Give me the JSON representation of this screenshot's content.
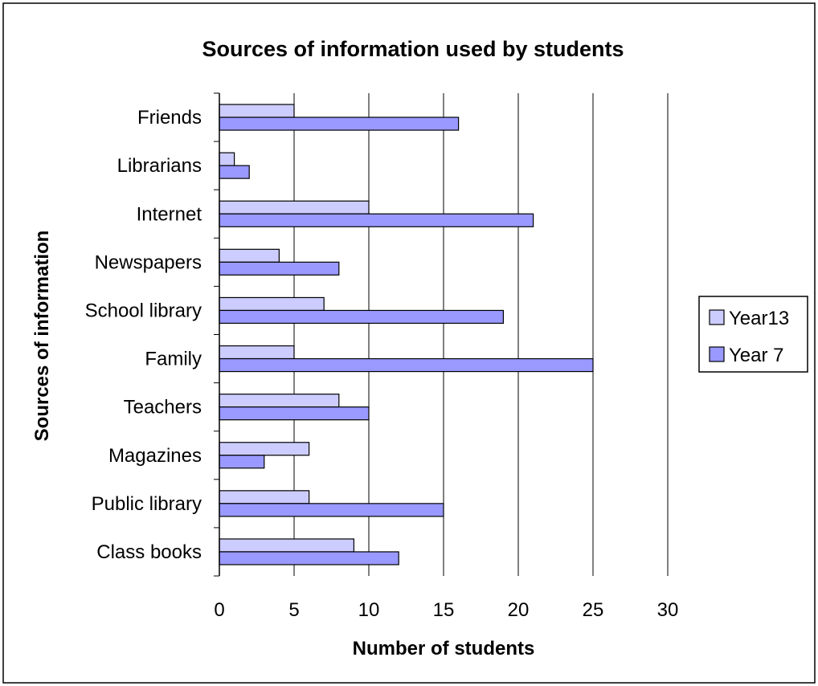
{
  "chart_data": {
    "type": "bar",
    "orientation": "horizontal",
    "title": "Sources of information used by students",
    "xlabel": "Number of students",
    "ylabel": "Sources of information",
    "xlim": [
      0,
      30
    ],
    "xticks": [
      "0",
      "5",
      "10",
      "15",
      "20",
      "25",
      "30"
    ],
    "grid": "vertical major gridlines",
    "legend_position": "right",
    "categories": [
      "Friends",
      "Librarians",
      "Internet",
      "Newspapers",
      "School library",
      "Family",
      "Teachers",
      "Magazines",
      "Public library",
      "Class books"
    ],
    "series": [
      {
        "name": "Year13",
        "color": "#ccccff",
        "values": [
          5,
          1,
          10,
          4,
          7,
          5,
          8,
          6,
          6,
          9
        ]
      },
      {
        "name": "Year 7",
        "color": "#9999ff",
        "values": [
          16,
          2,
          21,
          8,
          19,
          25,
          10,
          3,
          15,
          12
        ]
      }
    ]
  }
}
